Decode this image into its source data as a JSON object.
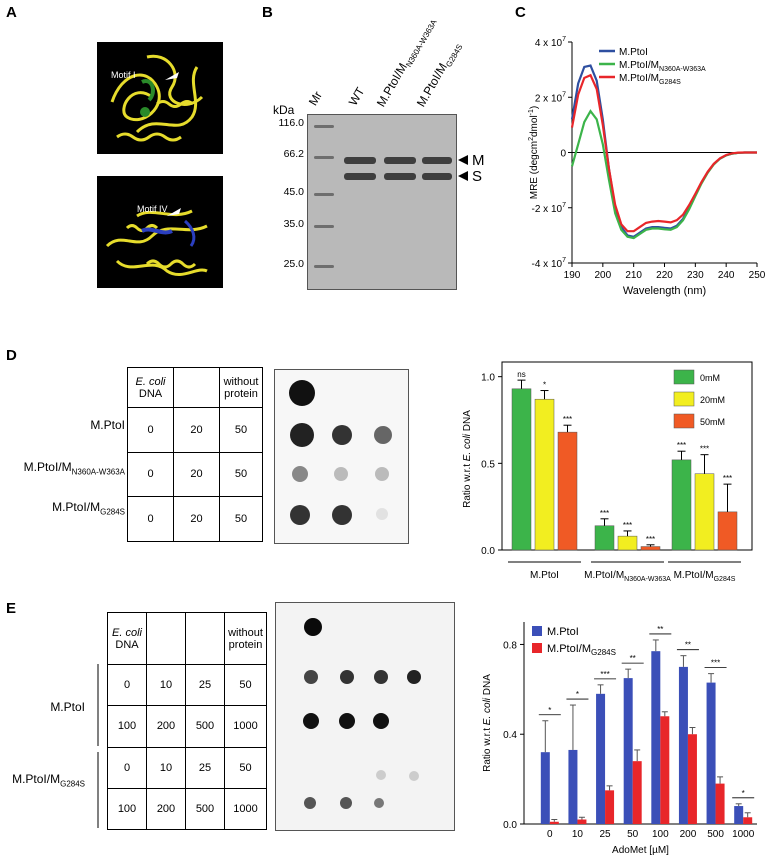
{
  "panels": {
    "A": "A",
    "B": "B",
    "C": "C",
    "D": "D",
    "E": "E"
  },
  "panelA": {
    "motif1": "Motif I",
    "motif4": "Motif IV"
  },
  "panelB": {
    "kda": "kDa",
    "mr": "Mr",
    "ladder": [
      "116.0",
      "66.2",
      "45.0",
      "35.0",
      "25.0"
    ],
    "lanes": [
      {
        "main": "WT",
        "sub": ""
      },
      {
        "main": "M.PtoI/M",
        "sub": "N360A-W363A"
      },
      {
        "main": "M.PtoI/M",
        "sub": "G284S"
      }
    ],
    "arrowM": "M",
    "arrowS": "S"
  },
  "colors": {
    "blue": "#2e4fa0",
    "green": "#3cb44a",
    "red": "#e8262a",
    "yellow": "#f2ee20",
    "orange": "#f05a25",
    "blueBar": "#3b4fb8"
  },
  "chart_data": [
    {
      "type": "line",
      "ylabel_main": "MRE (degcm",
      "ylabel_sup2": "2",
      "ylabel_mid": "dmol",
      "ylabel_sup1": "-1",
      "ylabel_end": ")",
      "xlabel": "Wavelength (nm)",
      "xlim": [
        190,
        250
      ],
      "ylim": [
        -40000000,
        40000000
      ],
      "xticks": [
        "190",
        "200",
        "210",
        "220",
        "230",
        "240",
        "250"
      ],
      "yticks": [
        {
          "pre": "4 x 10",
          "sup": "7",
          "v": 40000000
        },
        {
          "pre": "2 x 10",
          "sup": "7",
          "v": 20000000
        },
        {
          "pre": "0",
          "sup": "",
          "v": 0
        },
        {
          "pre": "-2 x 10",
          "sup": "7",
          "v": -20000000
        },
        {
          "pre": "-4 x 10",
          "sup": "7",
          "v": -40000000
        }
      ],
      "series": [
        {
          "name": "M.PtoI",
          "sub": "",
          "color": "#2e4fa0",
          "x": [
            190,
            192,
            194,
            196,
            198,
            200,
            202,
            204,
            206,
            208,
            210,
            212,
            214,
            216,
            218,
            220,
            222,
            224,
            226,
            228,
            230,
            232,
            234,
            236,
            238,
            240,
            242,
            244,
            246,
            248,
            250
          ],
          "y": [
            12000000,
            25000000,
            31000000,
            31500000,
            26000000,
            12000000,
            -6000000,
            -20000000,
            -27000000,
            -30000000,
            -30500000,
            -29000000,
            -27500000,
            -27000000,
            -27000000,
            -27300000,
            -27500000,
            -26500000,
            -24000000,
            -20000000,
            -15500000,
            -11000000,
            -7200000,
            -4200000,
            -2200000,
            -1000000,
            -400000,
            -100000,
            0,
            0,
            0
          ]
        },
        {
          "name": "M.PtoI/M",
          "sub": "N360A-W363A",
          "color": "#3cb44a",
          "x": [
            190,
            192,
            194,
            196,
            198,
            200,
            202,
            204,
            206,
            208,
            210,
            212,
            214,
            216,
            218,
            220,
            222,
            224,
            226,
            228,
            230,
            232,
            234,
            236,
            238,
            240,
            242,
            244,
            246,
            248,
            250
          ],
          "y": [
            -5000000,
            3000000,
            11000000,
            15000000,
            12000000,
            3000000,
            -10000000,
            -22000000,
            -28000000,
            -30500000,
            -31000000,
            -29500000,
            -28000000,
            -27500000,
            -27500000,
            -27800000,
            -28000000,
            -27000000,
            -24500000,
            -20500000,
            -15800000,
            -11200000,
            -7300000,
            -4300000,
            -2200000,
            -1000000,
            -400000,
            -100000,
            0,
            0,
            0
          ]
        },
        {
          "name": "M.PtoI/M",
          "sub": "G284S",
          "color": "#e8262a",
          "x": [
            190,
            192,
            194,
            196,
            198,
            200,
            202,
            204,
            206,
            208,
            210,
            212,
            214,
            216,
            218,
            220,
            222,
            224,
            226,
            228,
            230,
            232,
            234,
            236,
            238,
            240,
            242,
            244,
            246,
            248,
            250
          ],
          "y": [
            9000000,
            21000000,
            27000000,
            28000000,
            23000000,
            10000000,
            -6000000,
            -19000000,
            -26000000,
            -28500000,
            -28500000,
            -27000000,
            -25500000,
            -25000000,
            -24800000,
            -25000000,
            -25300000,
            -24500000,
            -22500000,
            -19000000,
            -15000000,
            -10700000,
            -7000000,
            -4100000,
            -2100000,
            -900000,
            -300000,
            -50000,
            0,
            0,
            0
          ]
        }
      ]
    },
    {
      "type": "bar",
      "ylabel_pre": "Ratio w.r.t ",
      "ylabel_ital": "E. coli",
      "ylabel_post": " DNA",
      "ylim": [
        0,
        1.05
      ],
      "yticks": [
        "0.0",
        "0.5",
        "1.0"
      ],
      "groups": [
        {
          "label": "M.PtoI",
          "sub": ""
        },
        {
          "label": "M.PtoI/M",
          "sub": "N360A-W363A"
        },
        {
          "label": "M.PtoI/M",
          "sub": "G284S"
        }
      ],
      "series": [
        {
          "name": "0mM",
          "color": "#3cb44a",
          "values": [
            0.93,
            0.14,
            0.52
          ],
          "errors": [
            0.05,
            0.04,
            0.05
          ],
          "stars": [
            "ns",
            "***",
            "***"
          ]
        },
        {
          "name": "20mM",
          "color": "#f2ee20",
          "values": [
            0.87,
            0.08,
            0.44
          ],
          "errors": [
            0.05,
            0.03,
            0.11
          ],
          "stars": [
            "*",
            "***",
            "***"
          ]
        },
        {
          "name": "50mM",
          "color": "#f05a25",
          "values": [
            0.68,
            0.02,
            0.22
          ],
          "errors": [
            0.04,
            0.01,
            0.16
          ],
          "stars": [
            "***",
            "***",
            "***"
          ]
        }
      ]
    },
    {
      "type": "bar",
      "ylabel_pre": "Ratio w.r.t ",
      "ylabel_ital": "E. coli",
      "ylabel_post": " DNA",
      "xlabel": "AdoMet [µM]",
      "ylim": [
        0,
        0.9
      ],
      "yticks": [
        "0.0",
        "0.4",
        "0.8"
      ],
      "categories": [
        "0",
        "10",
        "25",
        "50",
        "100",
        "200",
        "500",
        "1000"
      ],
      "series": [
        {
          "name": "M.PtoI",
          "sub": "",
          "color": "#3b4fb8",
          "values": [
            0.32,
            0.33,
            0.58,
            0.65,
            0.77,
            0.7,
            0.63,
            0.08
          ],
          "errors": [
            0.14,
            0.2,
            0.04,
            0.04,
            0.05,
            0.05,
            0.04,
            0.01
          ]
        },
        {
          "name": "M.PtoI/M",
          "sub": "G284S",
          "color": "#e8262a",
          "values": [
            0.01,
            0.02,
            0.15,
            0.28,
            0.48,
            0.4,
            0.18,
            0.03
          ],
          "errors": [
            0.01,
            0.01,
            0.02,
            0.05,
            0.02,
            0.03,
            0.03,
            0.02
          ]
        }
      ],
      "sig": [
        "*",
        "*",
        "***",
        "**",
        "**",
        "**",
        "***",
        "*"
      ]
    }
  ],
  "tableD": {
    "head": [
      {
        "ital": "E. coli",
        "rest": "DNA"
      },
      {
        "ital": "",
        "rest": ""
      },
      {
        "ital": "",
        "rest": "without protein"
      }
    ],
    "rows": [
      {
        "label": "M.PtoI",
        "sub": "",
        "vals": [
          "0",
          "20",
          "50"
        ]
      },
      {
        "label": "M.PtoI/M",
        "sub": "N360A-W363A",
        "vals": [
          "0",
          "20",
          "50"
        ]
      },
      {
        "label": "M.PtoI/M",
        "sub": "G284S",
        "vals": [
          "0",
          "20",
          "50"
        ]
      }
    ]
  },
  "tableE": {
    "head": [
      {
        "ital": "E. coli",
        "rest": "DNA"
      },
      {
        "ital": "",
        "rest": ""
      },
      {
        "ital": "",
        "rest": ""
      },
      {
        "ital": "",
        "rest": "without protein"
      }
    ],
    "groups": [
      {
        "label": "M.PtoI",
        "sub": "",
        "rows": [
          [
            "0",
            "10",
            "25",
            "50"
          ],
          [
            "100",
            "200",
            "500",
            "1000"
          ]
        ]
      },
      {
        "label": "M.PtoI/M",
        "sub": "G284S",
        "rows": [
          [
            "0",
            "10",
            "25",
            "50"
          ],
          [
            "100",
            "200",
            "500",
            "1000"
          ]
        ]
      }
    ]
  }
}
